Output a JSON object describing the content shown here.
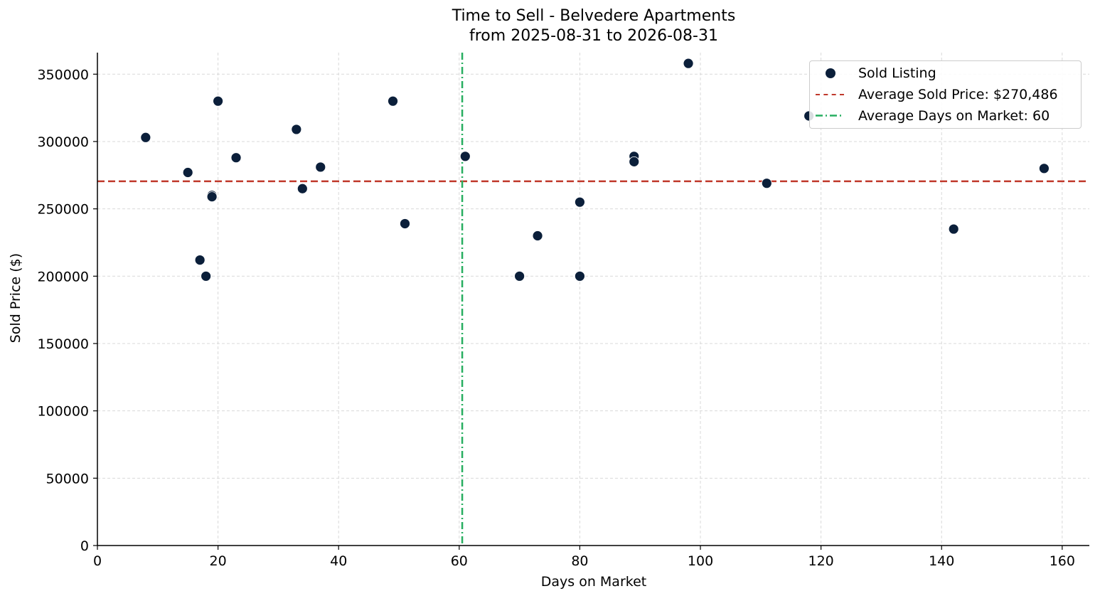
{
  "chart_data": {
    "type": "scatter",
    "title": "Time to Sell - Belvedere Apartments",
    "subtitle": "from 2025-08-31 to 2026-08-31",
    "xlabel": "Days on Market",
    "ylabel": "Sold Price ($)",
    "xlim": [
      0,
      164.5
    ],
    "ylim": [
      0,
      366000
    ],
    "xticks": [
      0,
      20,
      40,
      60,
      80,
      100,
      120,
      140,
      160
    ],
    "yticks": [
      0,
      50000,
      100000,
      150000,
      200000,
      250000,
      300000,
      350000
    ],
    "grid": true,
    "legend_position": "top-right",
    "series": [
      {
        "name": "Sold Listing",
        "color": "#0b1f3a",
        "points": [
          {
            "x": 8,
            "y": 303000
          },
          {
            "x": 15,
            "y": 277000
          },
          {
            "x": 17,
            "y": 212000
          },
          {
            "x": 18,
            "y": 200000
          },
          {
            "x": 19,
            "y": 260000
          },
          {
            "x": 19,
            "y": 259000
          },
          {
            "x": 20,
            "y": 330000
          },
          {
            "x": 23,
            "y": 288000
          },
          {
            "x": 33,
            "y": 309000
          },
          {
            "x": 34,
            "y": 265000
          },
          {
            "x": 37,
            "y": 281000
          },
          {
            "x": 49,
            "y": 330000
          },
          {
            "x": 51,
            "y": 239000
          },
          {
            "x": 61,
            "y": 289000
          },
          {
            "x": 70,
            "y": 200000
          },
          {
            "x": 73,
            "y": 230000
          },
          {
            "x": 80,
            "y": 255000
          },
          {
            "x": 80,
            "y": 200000
          },
          {
            "x": 89,
            "y": 289000
          },
          {
            "x": 89,
            "y": 285000
          },
          {
            "x": 98,
            "y": 358000
          },
          {
            "x": 111,
            "y": 269000
          },
          {
            "x": 118,
            "y": 319000
          },
          {
            "x": 142,
            "y": 235000
          },
          {
            "x": 157,
            "y": 280000
          }
        ]
      }
    ],
    "reference_lines": [
      {
        "name": "Average Sold Price: $270,486",
        "orientation": "horizontal",
        "value": 270486,
        "style": "dashed",
        "color": "#c0392b"
      },
      {
        "name": "Average Days on Market: 60",
        "orientation": "vertical",
        "value": 60.5,
        "style": "dashdot",
        "color": "#27ae60"
      }
    ]
  }
}
